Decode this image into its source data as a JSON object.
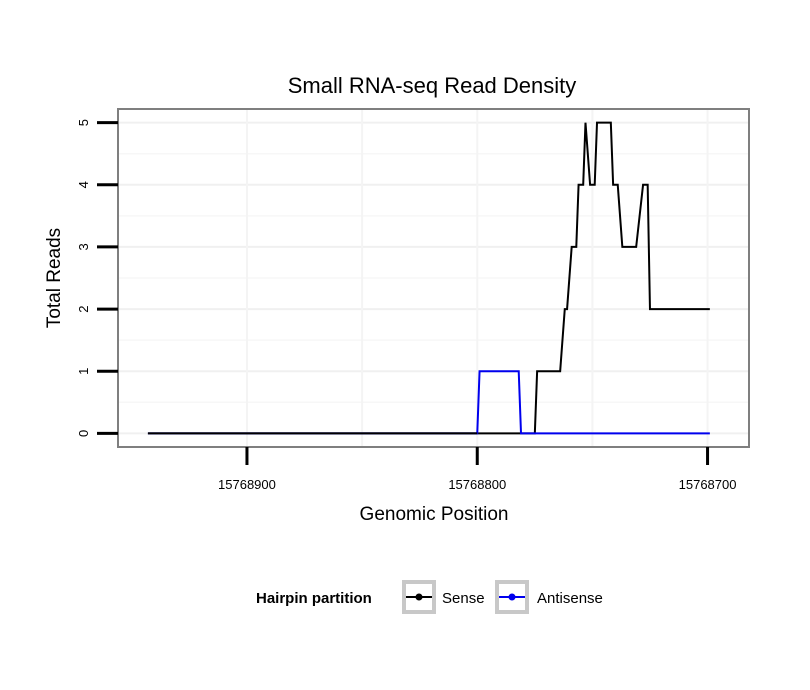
{
  "chart_data": {
    "type": "line",
    "title": "Small RNA-seq Read Density",
    "xlabel": "Genomic Position",
    "ylabel": "Total Reads",
    "x_reversed": true,
    "xlim": [
      15768956,
      15768682
    ],
    "ylim": [
      -0.22,
      5.22
    ],
    "x_ticks": [
      15768900,
      15768800,
      15768700
    ],
    "x_tick_labels": [
      "15768900",
      "15768800",
      "15768700"
    ],
    "y_ticks": [
      0,
      1,
      2,
      3,
      4,
      5
    ],
    "y_tick_labels": [
      "0",
      "1",
      "2",
      "3",
      "4",
      "5"
    ],
    "grid": true,
    "legend": {
      "title": "Hairpin partition",
      "position": "bottom",
      "entries": [
        "Sense",
        "Antisense"
      ]
    },
    "series": [
      {
        "name": "Sense",
        "color": "#000000",
        "x": [
          15768943,
          15768775,
          15768774,
          15768764,
          15768762,
          15768761,
          15768759,
          15768757,
          15768756,
          15768754,
          15768753,
          15768751,
          15768749,
          15768748,
          15768746,
          15768742,
          15768741,
          15768739,
          15768737,
          15768732,
          15768731,
          15768728,
          15768726,
          15768725,
          15768722,
          15768721,
          15768718,
          15768717,
          15768699
        ],
        "y": [
          0,
          0,
          1,
          1,
          2,
          2,
          3,
          3,
          4,
          4,
          5,
          4,
          4,
          5,
          5,
          5,
          4,
          4,
          3,
          3,
          3,
          4,
          4,
          2,
          2,
          2,
          2,
          2,
          2
        ]
      },
      {
        "name": "Antisense",
        "color": "#0000ee",
        "x": [
          15768943,
          15768800,
          15768799,
          15768782,
          15768781,
          15768699
        ],
        "y": [
          0,
          0,
          1,
          1,
          0,
          0
        ]
      }
    ]
  }
}
